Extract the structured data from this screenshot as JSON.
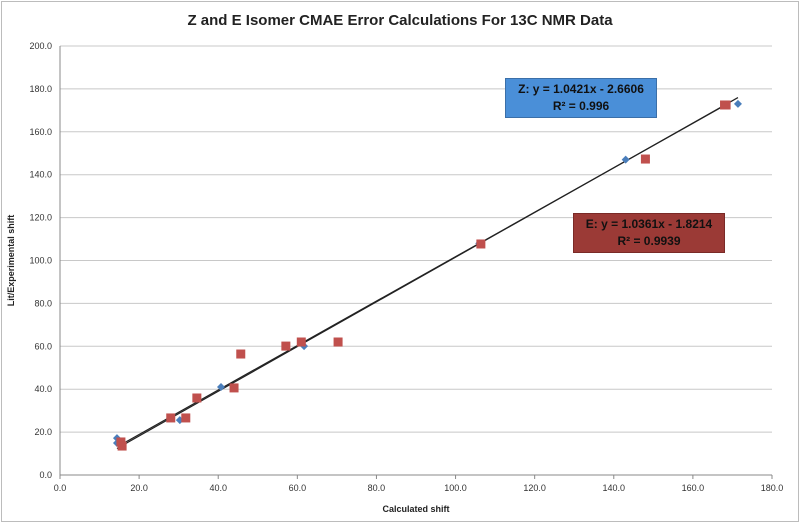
{
  "chart_data": {
    "type": "scatter",
    "title": "Z and E Isomer CMAE Error Calculations For  13C NMR Data",
    "xlabel": "Calculated shift",
    "ylabel": "Lit/Experimental shift",
    "xlim": [
      0,
      180
    ],
    "ylim": [
      0,
      200
    ],
    "xticks": [
      "0.0",
      "20.0",
      "40.0",
      "60.0",
      "80.0",
      "100.0",
      "120.0",
      "140.0",
      "160.0",
      "180.0"
    ],
    "yticks": [
      "0.0",
      "20.0",
      "40.0",
      "60.0",
      "80.0",
      "100.0",
      "120.0",
      "140.0",
      "160.0",
      "180.0",
      "200.0"
    ],
    "grid": "horizontal",
    "series": [
      {
        "name": "Z",
        "marker": "diamond",
        "color": "#4a7ebb",
        "x": [
          14.4,
          14.4,
          30.3,
          40.7,
          61.7,
          106,
          143,
          171.4
        ],
        "y": [
          17.2,
          14.9,
          25.6,
          41.0,
          60.1,
          108,
          147,
          173
        ],
        "trendline": {
          "slope": 1.0421,
          "intercept": -2.6606
        },
        "equation": "Z: y = 1.0421x - 2.6606",
        "r2": "R² = 0.996",
        "box_color": "#4a8fd8"
      },
      {
        "name": "E",
        "marker": "square",
        "color": "#c0504d",
        "x": [
          15.4,
          15.7,
          28,
          31.8,
          34.6,
          44,
          45.7,
          57.1,
          61,
          70.3,
          106.4,
          148,
          168,
          168.4
        ],
        "y": [
          15.4,
          13.5,
          26.6,
          26.6,
          35.9,
          40.6,
          56.4,
          60.1,
          62,
          62,
          107.7,
          147.3,
          172.5,
          172.5
        ],
        "trendline": {
          "slope": 1.0361,
          "intercept": -1.8214
        },
        "equation": "E: y = 1.0361x - 1.8214",
        "r2": "R² = 0.9939",
        "box_color": "#9b3a36"
      }
    ]
  }
}
